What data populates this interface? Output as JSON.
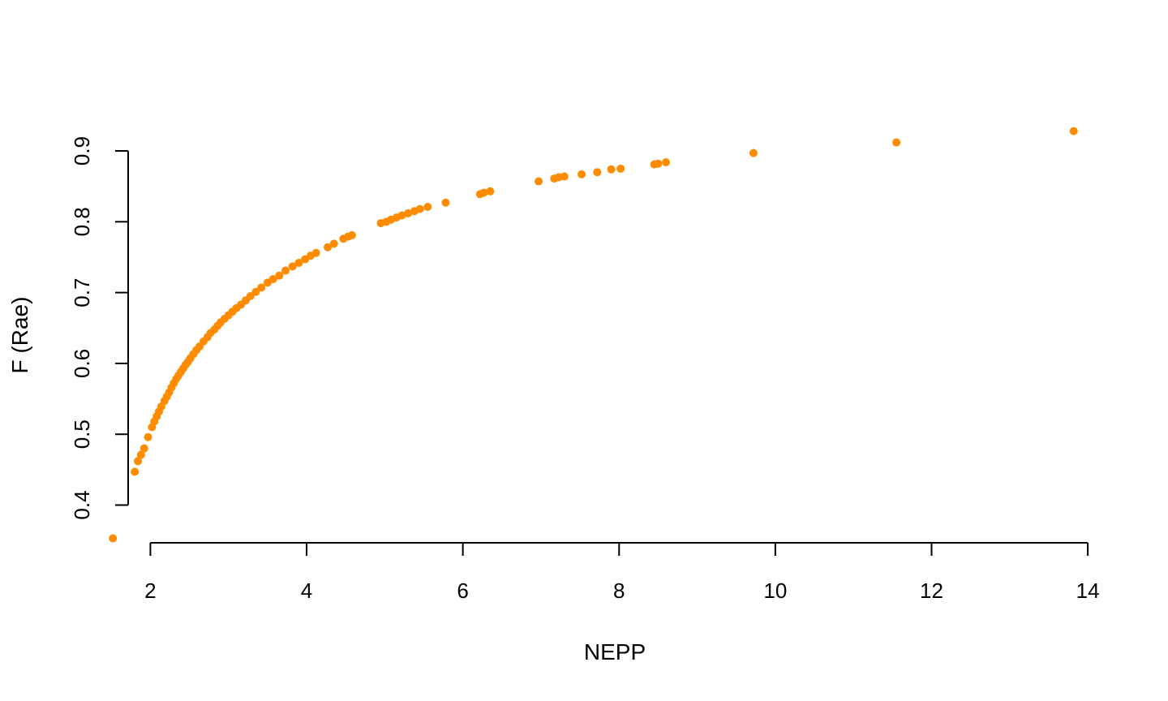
{
  "chart_data": {
    "type": "scatter",
    "title": "",
    "xlabel": "NEPP",
    "ylabel": "F (Rae)",
    "xlim": [
      1.3,
      14.3
    ],
    "ylim": [
      0.325,
      0.955
    ],
    "x_ticks": [
      2,
      4,
      6,
      8,
      10,
      12,
      14
    ],
    "x_tick_labels": [
      "2",
      "4",
      "6",
      "8",
      "10",
      "12",
      "14"
    ],
    "y_ticks": [
      0.4,
      0.5,
      0.6,
      0.7,
      0.8,
      0.9
    ],
    "y_tick_labels": [
      "0.4",
      "0.5",
      "0.6",
      "0.7",
      "0.8",
      "0.9"
    ],
    "grid": false,
    "legend": "none",
    "point_color": "#FF8C00",
    "x": [
      1.52,
      1.8,
      1.84,
      1.88,
      1.92,
      1.97,
      2.02,
      2.05,
      2.08,
      2.11,
      2.14,
      2.18,
      2.21,
      2.24,
      2.27,
      2.3,
      2.33,
      2.36,
      2.39,
      2.42,
      2.45,
      2.48,
      2.51,
      2.55,
      2.59,
      2.63,
      2.68,
      2.73,
      2.77,
      2.82,
      2.86,
      2.9,
      2.95,
      3.0,
      3.05,
      3.1,
      3.16,
      3.22,
      3.28,
      3.35,
      3.42,
      3.5,
      3.57,
      3.65,
      3.73,
      3.82,
      3.9,
      3.98,
      4.05,
      4.12,
      4.27,
      4.35,
      4.47,
      4.53,
      4.58,
      4.95,
      5.02,
      5.08,
      5.15,
      5.22,
      5.3,
      5.38,
      5.45,
      5.55,
      5.78,
      6.22,
      6.27,
      6.35,
      6.97,
      7.17,
      7.23,
      7.3,
      7.52,
      7.72,
      7.9,
      8.02,
      8.45,
      8.5,
      8.6,
      9.72,
      11.55,
      13.82
    ],
    "y": [
      0.353,
      0.447,
      0.462,
      0.471,
      0.48,
      0.496,
      0.51,
      0.518,
      0.525,
      0.532,
      0.539,
      0.547,
      0.553,
      0.559,
      0.566,
      0.572,
      0.578,
      0.583,
      0.588,
      0.593,
      0.598,
      0.602,
      0.607,
      0.613,
      0.619,
      0.624,
      0.631,
      0.637,
      0.643,
      0.648,
      0.653,
      0.658,
      0.663,
      0.668,
      0.673,
      0.678,
      0.683,
      0.689,
      0.695,
      0.701,
      0.707,
      0.714,
      0.719,
      0.724,
      0.731,
      0.737,
      0.742,
      0.747,
      0.752,
      0.756,
      0.764,
      0.769,
      0.776,
      0.779,
      0.781,
      0.798,
      0.8,
      0.803,
      0.806,
      0.809,
      0.812,
      0.815,
      0.818,
      0.821,
      0.827,
      0.839,
      0.841,
      0.843,
      0.857,
      0.861,
      0.863,
      0.864,
      0.867,
      0.87,
      0.874,
      0.875,
      0.881,
      0.882,
      0.884,
      0.897,
      0.912,
      0.928
    ]
  }
}
